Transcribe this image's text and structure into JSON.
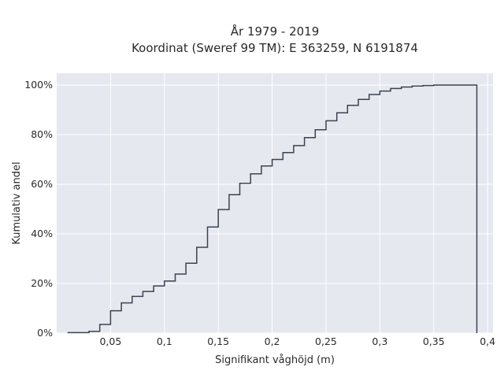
{
  "chart_data": {
    "type": "line",
    "title_line1": "År 1979 - 2019",
    "title_line2": "Koordinat (Sweref 99 TM): E 363259, N 6191874",
    "xlabel": "Signifikant våghöjd (m)",
    "ylabel": "Kumulativ andel",
    "xlim": [
      0.0,
      0.405
    ],
    "ylim": [
      0,
      100
    ],
    "x_ticks": [
      0.05,
      0.1,
      0.15,
      0.2,
      0.25,
      0.3,
      0.35,
      0.4
    ],
    "x_tick_labels": [
      "0,05",
      "0,1",
      "0,15",
      "0,2",
      "0,25",
      "0,3",
      "0,35",
      "0,4"
    ],
    "y_ticks": [
      0,
      20,
      40,
      60,
      80,
      100
    ],
    "y_tick_labels": [
      "0%",
      "20%",
      "40%",
      "60%",
      "80%",
      "100%"
    ],
    "grid": true,
    "colors": {
      "plot_bg": "#e6e8f0",
      "grid": "#ffffff",
      "line": "#3b4350"
    },
    "series": [
      {
        "x": [
          0.02,
          0.03,
          0.04,
          0.05,
          0.06,
          0.07,
          0.08,
          0.09,
          0.1,
          0.11,
          0.12,
          0.13,
          0.14,
          0.15,
          0.16,
          0.17,
          0.18,
          0.19,
          0.2,
          0.21,
          0.22,
          0.23,
          0.24,
          0.25,
          0.26,
          0.27,
          0.28,
          0.29,
          0.3,
          0.31,
          0.32,
          0.33,
          0.34,
          0.35,
          0.36,
          0.37,
          0.38,
          0.39
        ],
        "y": [
          0.2,
          0.7,
          3.5,
          9.0,
          12.2,
          14.8,
          16.8,
          19.0,
          21.0,
          23.8,
          28.2,
          34.6,
          42.8,
          49.8,
          55.8,
          60.4,
          64.2,
          67.4,
          70.0,
          72.8,
          75.6,
          78.8,
          82.0,
          85.6,
          88.8,
          91.8,
          94.2,
          96.2,
          97.6,
          98.6,
          99.2,
          99.6,
          99.8,
          100.0,
          100.0,
          100.0,
          100.0,
          100.0
        ]
      }
    ]
  }
}
